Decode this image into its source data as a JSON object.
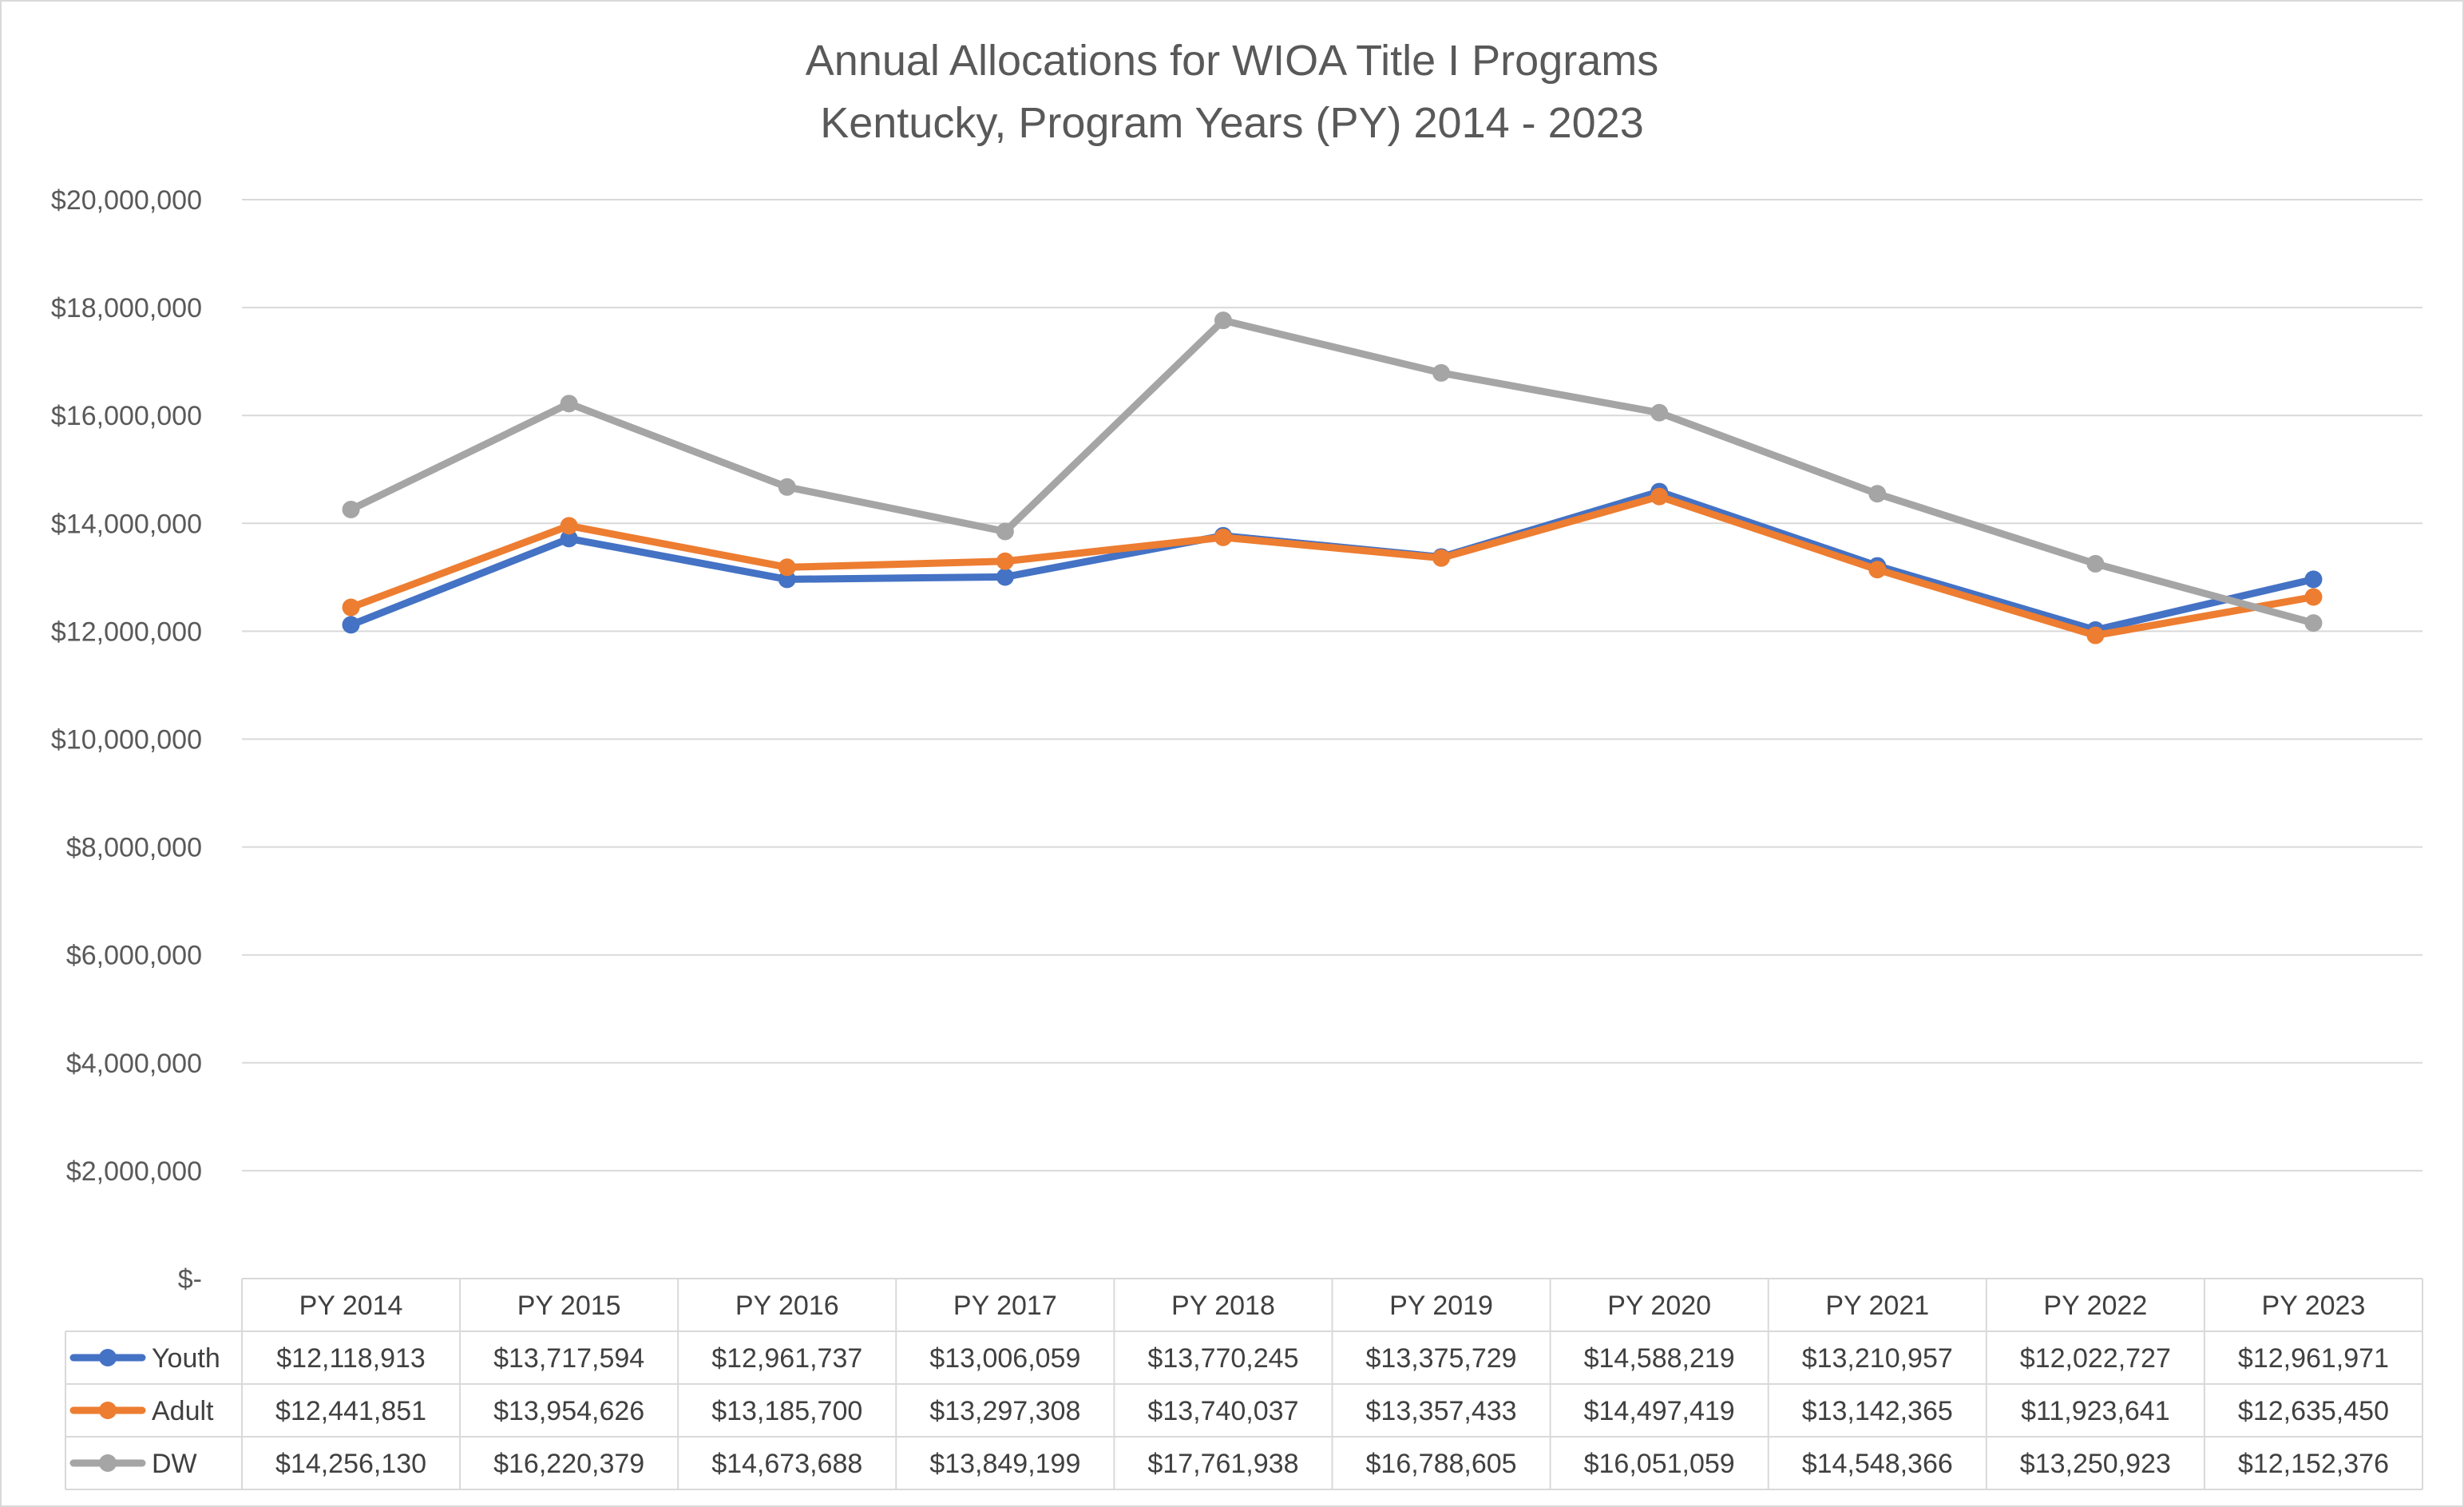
{
  "chart_data": {
    "type": "line",
    "title": "Annual Allocations for WIOA Title I Programs",
    "subtitle": "Kentucky, Program Years (PY) 2014 - 2023",
    "categories": [
      "PY 2014",
      "PY 2015",
      "PY 2016",
      "PY 2017",
      "PY 2018",
      "PY 2019",
      "PY 2020",
      "PY 2021",
      "PY 2022",
      "PY 2023"
    ],
    "y_ticks": [
      "$-",
      "$2,000,000",
      "$4,000,000",
      "$6,000,000",
      "$8,000,000",
      "$10,000,000",
      "$12,000,000",
      "$14,000,000",
      "$16,000,000",
      "$18,000,000",
      "$20,000,000"
    ],
    "ylim": [
      0,
      20000000
    ],
    "grid": true,
    "legend": "data-table",
    "series": [
      {
        "name": "Youth",
        "color": "#4472C4",
        "values": [
          12118913,
          13717594,
          12961737,
          13006059,
          13770245,
          13375729,
          14588219,
          13210957,
          12022727,
          12961971
        ],
        "labels": [
          "$12,118,913",
          "$13,717,594",
          "$12,961,737",
          "$13,006,059",
          "$13,770,245",
          "$13,375,729",
          "$14,588,219",
          "$13,210,957",
          "$12,022,727",
          "$12,961,971"
        ]
      },
      {
        "name": "Adult",
        "color": "#ED7D31",
        "values": [
          12441851,
          13954626,
          13185700,
          13297308,
          13740037,
          13357433,
          14497419,
          13142365,
          11923641,
          12635450
        ],
        "labels": [
          "$12,441,851",
          "$13,954,626",
          "$13,185,700",
          "$13,297,308",
          "$13,740,037",
          "$13,357,433",
          "$14,497,419",
          "$13,142,365",
          "$11,923,641",
          "$12,635,450"
        ]
      },
      {
        "name": "DW",
        "color": "#A5A5A5",
        "values": [
          14256130,
          16220379,
          14673688,
          13849199,
          17761938,
          16788605,
          16051059,
          14548366,
          13250923,
          12152376
        ],
        "labels": [
          "$14,256,130",
          "$16,220,379",
          "$14,673,688",
          "$13,849,199",
          "$17,761,938",
          "$16,788,605",
          "$16,051,059",
          "$14,548,366",
          "$13,250,923",
          "$12,152,376"
        ]
      }
    ]
  }
}
